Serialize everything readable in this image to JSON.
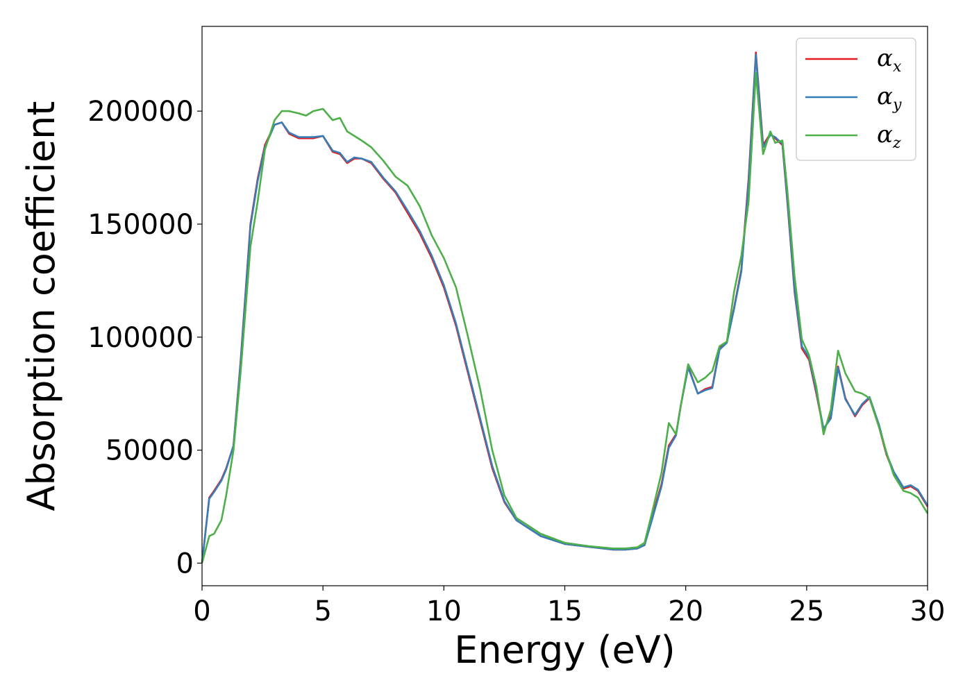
{
  "chart_data": {
    "type": "line",
    "xlabel": "Energy (eV)",
    "ylabel": "Absorption coefficient",
    "xlim": [
      0,
      30
    ],
    "ylim": [
      -10000,
      237500
    ],
    "xticks": [
      0,
      5,
      10,
      15,
      20,
      25,
      30
    ],
    "xtick_labels": [
      "0",
      "5",
      "10",
      "15",
      "20",
      "25",
      "30"
    ],
    "yticks": [
      0,
      50000,
      100000,
      150000,
      200000
    ],
    "ytick_labels": [
      "0",
      "50000",
      "100000",
      "150000",
      "200000"
    ],
    "grid": false,
    "legend_position": "top-right",
    "series": [
      {
        "name": "α",
        "subscript": "x",
        "color": "#e41a1c",
        "x": [
          0,
          0.3,
          0.5,
          0.8,
          1.0,
          1.3,
          1.6,
          2.0,
          2.3,
          2.6,
          3.0,
          3.3,
          3.6,
          4.0,
          4.3,
          4.6,
          5.0,
          5.4,
          5.7,
          6.0,
          6.3,
          6.6,
          7.0,
          7.5,
          8.0,
          8.5,
          9.0,
          9.5,
          10.0,
          10.5,
          11.0,
          11.5,
          12.0,
          12.5,
          13.0,
          14.0,
          15.0,
          16.0,
          17.0,
          17.5,
          18.0,
          18.3,
          18.6,
          19.0,
          19.3,
          19.6,
          19.8,
          20.1,
          20.5,
          20.8,
          21.1,
          21.4,
          21.7,
          22.0,
          22.3,
          22.6,
          22.9,
          23.2,
          23.5,
          23.7,
          24.0,
          24.2,
          24.5,
          24.8,
          25.1,
          25.4,
          25.7,
          26.0,
          26.3,
          26.6,
          27.0,
          27.3,
          27.6,
          28.0,
          28.3,
          28.6,
          29.0,
          29.3,
          29.6,
          30.0
        ],
        "y": [
          0,
          29000,
          32000,
          37000,
          42000,
          52000,
          90000,
          150000,
          170000,
          185000,
          194000,
          195000,
          190000,
          188000,
          188000,
          188000,
          189000,
          182000,
          181000,
          177000,
          179000,
          179000,
          177000,
          170000,
          164000,
          155000,
          146000,
          135000,
          122000,
          105000,
          84000,
          63000,
          42000,
          27000,
          19000,
          12000,
          8500,
          7200,
          6000,
          6000,
          6500,
          8000,
          20000,
          35000,
          52000,
          57000,
          70000,
          87000,
          75000,
          77000,
          78000,
          95000,
          98000,
          113000,
          130000,
          170000,
          226000,
          185000,
          190000,
          188000,
          185000,
          160000,
          120000,
          95000,
          90000,
          75000,
          59000,
          65000,
          87000,
          73000,
          65000,
          70000,
          73000,
          60000,
          48000,
          40000,
          33000,
          34000,
          32000,
          25000
        ]
      },
      {
        "name": "α",
        "subscript": "y",
        "color": "#377eb8",
        "x": [
          0,
          0.3,
          0.5,
          0.8,
          1.0,
          1.3,
          1.6,
          2.0,
          2.3,
          2.6,
          3.0,
          3.3,
          3.6,
          4.0,
          4.3,
          4.6,
          5.0,
          5.4,
          5.7,
          6.0,
          6.3,
          6.6,
          7.0,
          7.5,
          8.0,
          8.5,
          9.0,
          9.5,
          10.0,
          10.5,
          11.0,
          11.5,
          12.0,
          12.5,
          13.0,
          14.0,
          15.0,
          16.0,
          17.0,
          17.5,
          18.0,
          18.3,
          18.6,
          19.0,
          19.3,
          19.6,
          19.8,
          20.1,
          20.5,
          20.8,
          21.1,
          21.4,
          21.7,
          22.0,
          22.3,
          22.6,
          22.9,
          23.2,
          23.5,
          23.7,
          24.0,
          24.2,
          24.5,
          24.8,
          25.1,
          25.4,
          25.7,
          26.0,
          26.3,
          26.6,
          27.0,
          27.3,
          27.6,
          28.0,
          28.3,
          28.6,
          29.0,
          29.3,
          29.6,
          30.0
        ],
        "y": [
          0,
          28500,
          31500,
          36500,
          41500,
          52000,
          89000,
          149000,
          169000,
          184000,
          194000,
          195000,
          190500,
          188500,
          188500,
          188500,
          189000,
          182500,
          181500,
          177500,
          179500,
          179000,
          177500,
          170500,
          164500,
          156000,
          147000,
          136000,
          123000,
          106000,
          85000,
          64000,
          43000,
          27500,
          19000,
          12000,
          8500,
          7200,
          6000,
          6000,
          6500,
          8000,
          19000,
          34000,
          51000,
          56500,
          70000,
          86500,
          75000,
          76500,
          77500,
          94500,
          97500,
          112500,
          129000,
          168000,
          225000,
          184000,
          189500,
          188500,
          185500,
          161000,
          121000,
          96000,
          91000,
          76000,
          59500,
          64000,
          86500,
          72500,
          65500,
          70500,
          73500,
          61000,
          48500,
          40500,
          33500,
          34500,
          32500,
          25500
        ]
      },
      {
        "name": "α",
        "subscript": "z",
        "color": "#4daf4a",
        "x": [
          0,
          0.3,
          0.5,
          0.8,
          1.0,
          1.3,
          1.6,
          2.0,
          2.3,
          2.6,
          3.0,
          3.3,
          3.6,
          4.0,
          4.3,
          4.6,
          5.0,
          5.4,
          5.7,
          6.0,
          6.3,
          6.6,
          7.0,
          7.5,
          8.0,
          8.5,
          9.0,
          9.5,
          10.0,
          10.5,
          11.0,
          11.5,
          12.0,
          12.5,
          13.0,
          14.0,
          15.0,
          16.0,
          17.0,
          17.5,
          18.0,
          18.3,
          18.6,
          19.0,
          19.3,
          19.6,
          19.8,
          20.1,
          20.5,
          20.8,
          21.1,
          21.4,
          21.7,
          22.0,
          22.3,
          22.6,
          22.9,
          23.2,
          23.5,
          23.7,
          24.0,
          24.2,
          24.5,
          24.8,
          25.1,
          25.4,
          25.7,
          26.0,
          26.3,
          26.6,
          27.0,
          27.3,
          27.6,
          28.0,
          28.3,
          28.6,
          29.0,
          29.3,
          29.6,
          30.0
        ],
        "y": [
          0,
          12000,
          13000,
          19000,
          30000,
          50000,
          85000,
          140000,
          160000,
          183000,
          196000,
          200000,
          200000,
          199000,
          198000,
          200000,
          201000,
          196000,
          197000,
          191000,
          189000,
          187000,
          184000,
          178000,
          171000,
          167000,
          158000,
          145000,
          135000,
          122000,
          100000,
          77000,
          50000,
          30000,
          20000,
          13000,
          9000,
          7500,
          6500,
          6500,
          7000,
          9000,
          22000,
          40000,
          62000,
          57000,
          70000,
          88000,
          80000,
          82000,
          85000,
          96000,
          98000,
          120000,
          136000,
          160000,
          217000,
          181000,
          191000,
          186000,
          187000,
          165000,
          127000,
          99000,
          92000,
          78000,
          57000,
          68000,
          94000,
          84000,
          76000,
          75000,
          73000,
          60000,
          49000,
          39000,
          32000,
          31000,
          29000,
          22000
        ]
      }
    ]
  }
}
